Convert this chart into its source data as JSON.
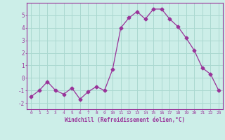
{
  "x": [
    0,
    1,
    2,
    3,
    4,
    5,
    6,
    7,
    8,
    9,
    10,
    11,
    12,
    13,
    14,
    15,
    16,
    17,
    18,
    19,
    20,
    21,
    22,
    23
  ],
  "y": [
    -1.5,
    -1.0,
    -0.3,
    -1.0,
    -1.3,
    -0.8,
    -1.7,
    -1.1,
    -0.7,
    -1.0,
    0.7,
    4.0,
    4.8,
    5.3,
    4.7,
    5.5,
    5.5,
    4.7,
    4.1,
    3.2,
    2.2,
    0.8,
    0.3,
    -1.0
  ],
  "line_color": "#993399",
  "marker": "D",
  "marker_size": 2.5,
  "bg_color": "#cceee8",
  "grid_color": "#aad8d0",
  "xlabel": "Windchill (Refroidissement éolien,°C)",
  "xlabel_color": "#993399",
  "ylabel_ticks": [
    -2,
    -1,
    0,
    1,
    2,
    3,
    4,
    5
  ],
  "xlim": [
    -0.5,
    23.5
  ],
  "ylim": [
    -2.5,
    6.0
  ],
  "tick_color": "#993399",
  "spine_color": "#993399"
}
